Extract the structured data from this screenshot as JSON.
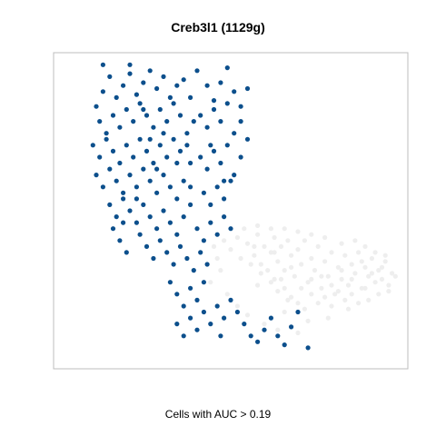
{
  "chart_data": {
    "type": "scatter",
    "title": "Creb3l1 (1129g)",
    "xlabel": "Cells with AUC > 0.19",
    "ylabel": "",
    "grid": false,
    "legend": "none",
    "colors": {
      "active": "#0c4f8c",
      "inactive": "#eeeeee",
      "frame": "#bdbdbd"
    },
    "xlim": [
      0,
      100
    ],
    "ylim": [
      0,
      100
    ],
    "series": [
      {
        "color": "#eeeeee",
        "points": [
          [
            48,
            40
          ],
          [
            50,
            37
          ],
          [
            52,
            41
          ],
          [
            55,
            39
          ],
          [
            57,
            35
          ],
          [
            58,
            42
          ],
          [
            60,
            38
          ],
          [
            62,
            36
          ],
          [
            63,
            41
          ],
          [
            64,
            33
          ],
          [
            65,
            38
          ],
          [
            66,
            30
          ],
          [
            67,
            40
          ],
          [
            68,
            35
          ],
          [
            69,
            28
          ],
          [
            70,
            37
          ],
          [
            71,
            32
          ],
          [
            72,
            40
          ],
          [
            73,
            26
          ],
          [
            74,
            34
          ],
          [
            75,
            30
          ],
          [
            76,
            38
          ],
          [
            77,
            24
          ],
          [
            78,
            33
          ],
          [
            79,
            28
          ],
          [
            80,
            36
          ],
          [
            81,
            22
          ],
          [
            82,
            31
          ],
          [
            83,
            27
          ],
          [
            84,
            35
          ],
          [
            85,
            25
          ],
          [
            86,
            32
          ],
          [
            87,
            29
          ],
          [
            88,
            36
          ],
          [
            89,
            24
          ],
          [
            90,
            31
          ],
          [
            91,
            28
          ],
          [
            92,
            34
          ],
          [
            93,
            26
          ],
          [
            94,
            30
          ],
          [
            95,
            27
          ],
          [
            96,
            33
          ],
          [
            97,
            25
          ],
          [
            98,
            29
          ],
          [
            99,
            28
          ],
          [
            61,
            30
          ],
          [
            63,
            27
          ],
          [
            66,
            24
          ],
          [
            68,
            21
          ],
          [
            70,
            19
          ],
          [
            72,
            17
          ],
          [
            74,
            22
          ],
          [
            76,
            19
          ],
          [
            78,
            21
          ],
          [
            80,
            18
          ],
          [
            82,
            23
          ],
          [
            84,
            20
          ],
          [
            86,
            22
          ],
          [
            88,
            19
          ],
          [
            90,
            24
          ],
          [
            56,
            32
          ],
          [
            59,
            29
          ],
          [
            62,
            26
          ],
          [
            64,
            23
          ],
          [
            67,
            20
          ],
          [
            53,
            34
          ],
          [
            58,
            25
          ],
          [
            66,
            16
          ],
          [
            73,
            13
          ],
          [
            79,
            14
          ],
          [
            85,
            17
          ],
          [
            91,
            20
          ],
          [
            94,
            22
          ],
          [
            97,
            23
          ],
          [
            87,
            40
          ],
          [
            90,
            38
          ],
          [
            93,
            36
          ],
          [
            96,
            35
          ],
          [
            83,
            39
          ],
          [
            78,
            41
          ],
          [
            74,
            42
          ],
          [
            70,
            43
          ],
          [
            66,
            44
          ],
          [
            62,
            44
          ],
          [
            58,
            45
          ],
          [
            54,
            44
          ],
          [
            59,
            32
          ],
          [
            65,
            27
          ],
          [
            71,
            24
          ],
          [
            77,
            28
          ],
          [
            83,
            30
          ],
          [
            89,
            33
          ],
          [
            95,
            31
          ],
          [
            92,
            29
          ],
          [
            86,
            27
          ],
          [
            80,
            25
          ],
          [
            74,
            27
          ],
          [
            68,
            31
          ],
          [
            63,
            36
          ],
          [
            57,
            38
          ],
          [
            45,
            38
          ],
          [
            46,
            34
          ],
          [
            47,
            30
          ],
          [
            44,
            26
          ],
          [
            49,
            22
          ],
          [
            52,
            18
          ],
          [
            55,
            15
          ],
          [
            60,
            12
          ],
          [
            64,
            10
          ],
          [
            70,
            9
          ]
        ]
      },
      {
        "color": "#0c4f8c",
        "points": [
          [
            10,
            85
          ],
          [
            12,
            90
          ],
          [
            14,
            95
          ],
          [
            16,
            88
          ],
          [
            18,
            92
          ],
          [
            20,
            96
          ],
          [
            22,
            89
          ],
          [
            24,
            93
          ],
          [
            26,
            97
          ],
          [
            28,
            91
          ],
          [
            30,
            95
          ],
          [
            32,
            88
          ],
          [
            34,
            92
          ],
          [
            11,
            80
          ],
          [
            13,
            76
          ],
          [
            15,
            82
          ],
          [
            17,
            78
          ],
          [
            19,
            84
          ],
          [
            21,
            80
          ],
          [
            23,
            86
          ],
          [
            25,
            82
          ],
          [
            27,
            78
          ],
          [
            29,
            84
          ],
          [
            31,
            80
          ],
          [
            33,
            86
          ],
          [
            35,
            82
          ],
          [
            9,
            72
          ],
          [
            11,
            68
          ],
          [
            13,
            74
          ],
          [
            15,
            70
          ],
          [
            17,
            66
          ],
          [
            19,
            72
          ],
          [
            21,
            68
          ],
          [
            23,
            74
          ],
          [
            25,
            70
          ],
          [
            27,
            66
          ],
          [
            29,
            72
          ],
          [
            31,
            68
          ],
          [
            33,
            74
          ],
          [
            35,
            70
          ],
          [
            37,
            76
          ],
          [
            10,
            62
          ],
          [
            12,
            58
          ],
          [
            14,
            64
          ],
          [
            16,
            60
          ],
          [
            18,
            56
          ],
          [
            20,
            62
          ],
          [
            22,
            58
          ],
          [
            24,
            64
          ],
          [
            26,
            60
          ],
          [
            28,
            56
          ],
          [
            30,
            62
          ],
          [
            32,
            58
          ],
          [
            34,
            54
          ],
          [
            36,
            60
          ],
          [
            38,
            66
          ],
          [
            14,
            52
          ],
          [
            16,
            48
          ],
          [
            18,
            54
          ],
          [
            20,
            50
          ],
          [
            22,
            46
          ],
          [
            24,
            52
          ],
          [
            26,
            48
          ],
          [
            28,
            44
          ],
          [
            30,
            50
          ],
          [
            32,
            46
          ],
          [
            34,
            42
          ],
          [
            36,
            48
          ],
          [
            38,
            52
          ],
          [
            15,
            44
          ],
          [
            17,
            40
          ],
          [
            19,
            36
          ],
          [
            23,
            42
          ],
          [
            25,
            38
          ],
          [
            27,
            34
          ],
          [
            29,
            40
          ],
          [
            31,
            36
          ],
          [
            33,
            32
          ],
          [
            35,
            38
          ],
          [
            37,
            34
          ],
          [
            39,
            30
          ],
          [
            41,
            36
          ],
          [
            43,
            32
          ],
          [
            32,
            26
          ],
          [
            34,
            22
          ],
          [
            36,
            18
          ],
          [
            38,
            24
          ],
          [
            40,
            20
          ],
          [
            42,
            26
          ],
          [
            34,
            12
          ],
          [
            36,
            8
          ],
          [
            38,
            14
          ],
          [
            40,
            10
          ],
          [
            42,
            16
          ],
          [
            44,
            12
          ],
          [
            46,
            18
          ],
          [
            48,
            14
          ],
          [
            50,
            20
          ],
          [
            52,
            16
          ],
          [
            54,
            12
          ],
          [
            56,
            8
          ],
          [
            58,
            6
          ],
          [
            60,
            10
          ],
          [
            62,
            14
          ],
          [
            64,
            8
          ],
          [
            66,
            5
          ],
          [
            68,
            11
          ],
          [
            70,
            16
          ],
          [
            73,
            4
          ],
          [
            47,
            8
          ],
          [
            40,
            97
          ],
          [
            43,
            92
          ],
          [
            45,
            87
          ],
          [
            47,
            93
          ],
          [
            49,
            98
          ],
          [
            51,
            90
          ],
          [
            53,
            85
          ],
          [
            55,
            91
          ],
          [
            41,
            82
          ],
          [
            43,
            78
          ],
          [
            45,
            84
          ],
          [
            47,
            80
          ],
          [
            49,
            86
          ],
          [
            51,
            76
          ],
          [
            53,
            80
          ],
          [
            55,
            74
          ],
          [
            41,
            68
          ],
          [
            43,
            64
          ],
          [
            45,
            70
          ],
          [
            47,
            66
          ],
          [
            49,
            72
          ],
          [
            51,
            62
          ],
          [
            53,
            68
          ],
          [
            42,
            56
          ],
          [
            44,
            52
          ],
          [
            46,
            58
          ],
          [
            48,
            54
          ],
          [
            50,
            60
          ],
          [
            40,
            44
          ],
          [
            42,
            40
          ],
          [
            44,
            46
          ],
          [
            46,
            42
          ],
          [
            48,
            48
          ],
          [
            50,
            44
          ],
          [
            38,
            88
          ],
          [
            36,
            94
          ],
          [
            39,
            80
          ],
          [
            37,
            72
          ],
          [
            12,
            99
          ],
          [
            20,
            99
          ],
          [
            24,
            84
          ],
          [
            26,
            74
          ],
          [
            28,
            64
          ],
          [
            22,
            54
          ],
          [
            18,
            46
          ],
          [
            30,
            76
          ],
          [
            34,
            66
          ],
          [
            38,
            58
          ],
          [
            44,
            72
          ],
          [
            48,
            60
          ]
        ]
      }
    ]
  }
}
